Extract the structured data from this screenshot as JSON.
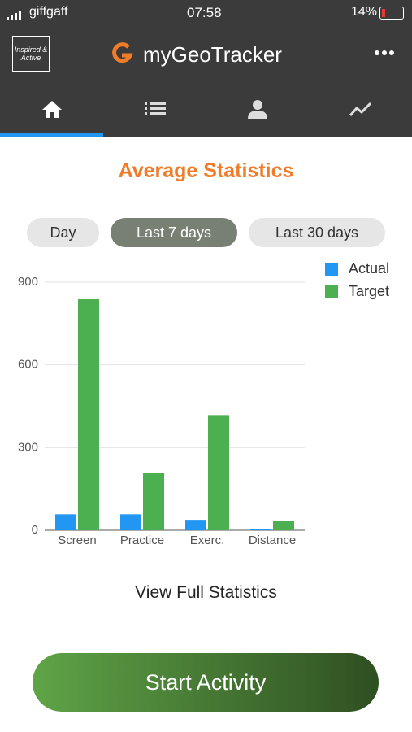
{
  "status_bar": {
    "carrier": "giffgaff",
    "time": "07:58",
    "battery": "14%"
  },
  "header": {
    "logo": "Inspired & Active",
    "title": "myGeoTracker"
  },
  "heading": "Average Statistics",
  "period_buttons": [
    "Day",
    "Last 7 days",
    "Last 30 days"
  ],
  "chart_data": {
    "type": "bar",
    "categories": [
      "Screen",
      "Practice",
      "Exerc.",
      "Distance"
    ],
    "series": [
      {
        "name": "Actual",
        "color": "#2196f3",
        "values": [
          58,
          58,
          38,
          3
        ]
      },
      {
        "name": "Target",
        "color": "#4caf50",
        "values": [
          838,
          208,
          418,
          33
        ]
      }
    ],
    "ylim": [
      0,
      900
    ],
    "yticks": [
      0,
      300,
      600,
      900
    ],
    "grid": true,
    "legend": "top-right"
  },
  "link": "View Full Statistics",
  "action_button": "Start Activity"
}
